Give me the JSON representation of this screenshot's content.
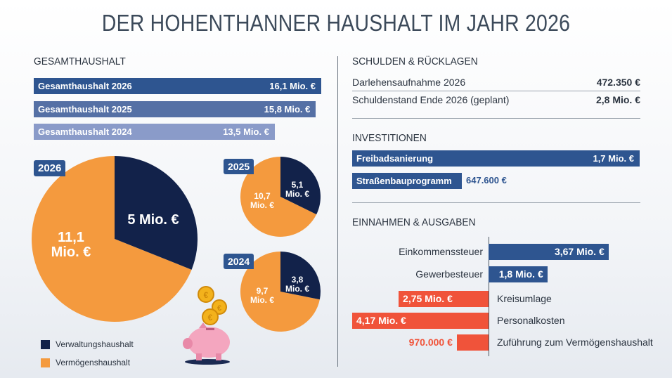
{
  "title": "DER HOHENTHANNER HAUSHALT IM JAHR 2026",
  "colors": {
    "navy": "#12224a",
    "orange": "#f49a3e",
    "blue": "#2e5590",
    "red": "#f0533a"
  },
  "gesamt": {
    "heading": "GESAMTHAUSHALT",
    "bars": [
      {
        "label": "Gesamthaushalt 2026",
        "value": "16,1 Mio. €",
        "amount": 16.1,
        "color": "#2e5590"
      },
      {
        "label": "Gesamthaushalt 2025",
        "value": "15,8 Mio. €",
        "amount": 15.8,
        "color": "#5570a5"
      },
      {
        "label": "Gesamthaushalt 2024",
        "value": "13,5 Mio. €",
        "amount": 13.5,
        "color": "#8a9bc9"
      }
    ]
  },
  "chart_data": [
    {
      "type": "pie",
      "year": "2026",
      "slices": [
        {
          "name": "Verwaltungshaushalt",
          "value": 11.1,
          "label_line1": "11,1",
          "label_line2": "Mio. €"
        },
        {
          "name": "Vermögenshaushalt",
          "value": 5,
          "label_line1": "5 Mio. €",
          "label_line2": ""
        }
      ]
    },
    {
      "type": "pie",
      "year": "2025",
      "slices": [
        {
          "name": "Verwaltungshaushalt",
          "value": 10.7,
          "label_line1": "10,7",
          "label_line2": "Mio. €"
        },
        {
          "name": "Vermögenshaushalt",
          "value": 5.1,
          "label_line1": "5,1",
          "label_line2": "Mio. €"
        }
      ]
    },
    {
      "type": "pie",
      "year": "2024",
      "slices": [
        {
          "name": "Verwaltungshaushalt",
          "value": 9.7,
          "label_line1": "9,7",
          "label_line2": "Mio. €"
        },
        {
          "name": "Vermögenshaushalt",
          "value": 3.8,
          "label_line1": "3,8",
          "label_line2": "Mio. €"
        }
      ]
    },
    {
      "type": "bar",
      "orientation": "horizontal-diverging",
      "title": "EINNAHMEN & AUSGABEN",
      "categories": [
        "Einkommenssteuer",
        "Gewerbesteuer",
        "Kreisumlage",
        "Personalkosten",
        "Zuführung zum Vermögenshaushalt"
      ],
      "values": [
        3.67,
        1.8,
        -2.75,
        -4.17,
        -0.97
      ],
      "labels": [
        "3,67 Mio. €",
        "1,8 Mio. €",
        "2,75 Mio. €",
        "4,17 Mio. €",
        "970.000 €"
      ]
    }
  ],
  "legend": [
    "Verwaltungshaushalt",
    "Vermögenshaushalt"
  ],
  "schulden": {
    "heading": "SCHULDEN & RÜCKLAGEN",
    "rows": [
      {
        "label": "Darlehensaufnahme 2026",
        "value": "472.350 €"
      },
      {
        "label": "Schuldenstand Ende 2026 (geplant)",
        "value": "2,8 Mio. €"
      }
    ]
  },
  "invest": {
    "heading": "INVESTITIONEN",
    "items": [
      {
        "label": "Freibadsanierung",
        "value": "1,7 Mio. €",
        "amount": 1.7
      },
      {
        "label": "Straßenbauprogramm",
        "value": "647.600 €",
        "amount": 0.6476
      }
    ]
  }
}
